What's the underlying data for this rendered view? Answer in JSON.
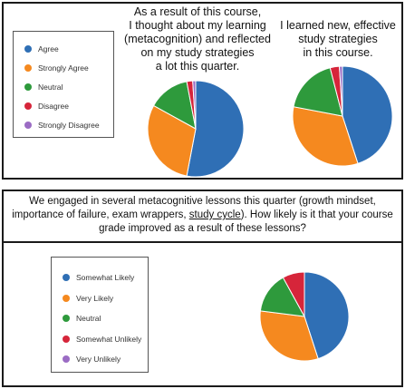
{
  "chart_data": [
    {
      "type": "pie",
      "title": "As a result of this course, I thought about my learning (metacognition) and reflected on my study strategies a lot this quarter.",
      "title_lines": [
        "As a result of this course,",
        "I thought about my learning",
        "(metacognition) and reflected",
        "on my study strategies",
        "a lot this quarter."
      ],
      "categories": [
        "Agree",
        "Strongly Agree",
        "Neutral",
        "Disagree",
        "Strongly Disagree"
      ],
      "values": [
        53,
        30,
        14,
        2,
        1
      ],
      "colors": [
        "#2f6fb5",
        "#f5891f",
        "#2e9a3c",
        "#d6253a",
        "#9b6cc4"
      ]
    },
    {
      "type": "pie",
      "title": "I learned new, effective study strategies in this course.",
      "title_lines": [
        "I learned new, effective",
        "study strategies",
        "in this course."
      ],
      "categories": [
        "Agree",
        "Strongly Agree",
        "Neutral",
        "Disagree",
        "Strongly Disagree"
      ],
      "values": [
        45,
        33,
        18,
        3,
        1
      ],
      "colors": [
        "#2f6fb5",
        "#f5891f",
        "#2e9a3c",
        "#d6253a",
        "#9b6cc4"
      ]
    },
    {
      "type": "pie",
      "title": "We engaged in several metacognitive lessons this quarter (growth mindset, importance of failure, exam wrappers, study cycle). How likely is it that your course grade improved as a result of these lessons?",
      "title_lines": [
        "We engaged in several metacognitive lessons this quarter (growth mindset,",
        "importance of failure, exam wrappers, study cycle).  How likely is it that your course",
        "grade improved as a result of these lessons?"
      ],
      "categories": [
        "Somewhat Likely",
        "Very Likely",
        "Neutral",
        "Somewhat Unlikely",
        "Very Unlikely"
      ],
      "values": [
        45,
        32,
        15,
        8,
        0
      ],
      "colors": [
        "#2f6fb5",
        "#f5891f",
        "#2e9a3c",
        "#d6253a",
        "#9b6cc4"
      ]
    }
  ],
  "legend_top": [
    "Agree",
    "Strongly Agree",
    "Neutral",
    "Disagree",
    "Strongly Disagree"
  ],
  "legend_bottom": [
    "Somewhat Likely",
    "Very Likely",
    "Neutral",
    "Somewhat Unlikely",
    "Very Unlikely"
  ],
  "colors": [
    "#2f6fb5",
    "#f5891f",
    "#2e9a3c",
    "#d6253a",
    "#9b6cc4"
  ]
}
